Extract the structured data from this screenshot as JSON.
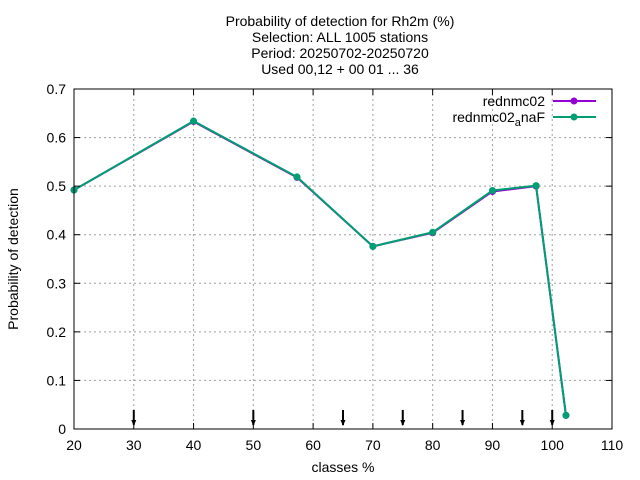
{
  "chart_data": {
    "type": "line",
    "title_lines": [
      "Probability of detection  for Rh2m (%)",
      "Selection: ALL   1005 stations",
      "Period: 20250702-20250720",
      "Used 00,12 + 00 01 ... 36"
    ],
    "xlabel": "classes %",
    "ylabel": "Probability of detection",
    "xlim": [
      20,
      110
    ],
    "ylim": [
      0,
      0.7
    ],
    "xticks": [
      20,
      30,
      40,
      50,
      60,
      70,
      80,
      90,
      100,
      110
    ],
    "yticks": [
      0,
      0.1,
      0.2,
      0.3,
      0.4,
      0.5,
      0.6,
      0.7
    ],
    "ytick_labels": [
      "0",
      "0.1",
      "0.2",
      "0.3",
      "0.4",
      "0.5",
      "0.6",
      "0.7"
    ],
    "grid": true,
    "legend_position": "top-right",
    "series": [
      {
        "name": "rednmc02",
        "color": "#9400d3",
        "x": [
          20,
          40,
          57.3,
          70,
          80,
          90,
          97.3,
          102.3
        ],
        "y": [
          0.492,
          0.633,
          0.518,
          0.376,
          0.404,
          0.489,
          0.5,
          0.028
        ]
      },
      {
        "name": "rednmc02_anaF",
        "name_main": "rednmc02",
        "name_sub": "a",
        "name_tail": "naF",
        "color": "#009e73",
        "x": [
          20,
          40,
          57.3,
          70,
          80,
          90,
          97.3,
          102.3
        ],
        "y": [
          0.492,
          0.634,
          0.519,
          0.376,
          0.405,
          0.491,
          0.501,
          0.028
        ]
      }
    ],
    "markers_x": [
      30,
      50,
      65,
      75,
      85,
      95,
      100
    ]
  }
}
